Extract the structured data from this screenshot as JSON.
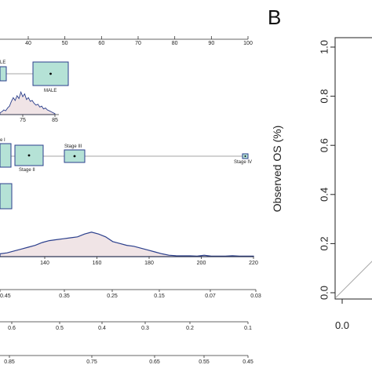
{
  "chart_data": [
    {
      "type": "nomogram",
      "points_axis": {
        "ticks": [
          40,
          50,
          60,
          70,
          80,
          90,
          100
        ]
      },
      "sex": {
        "categories": [
          "LE",
          "MALE"
        ]
      },
      "age_axis": {
        "ticks": [
          75,
          85
        ],
        "density": [
          2,
          3,
          5,
          4,
          7,
          9,
          14,
          18,
          15,
          20,
          17,
          24,
          19,
          22,
          16,
          18,
          14,
          15,
          12,
          10,
          11,
          8,
          9,
          6,
          7,
          5,
          4,
          3,
          2,
          1
        ]
      },
      "stage": {
        "categories": [
          "e I",
          "Stage II",
          "Stage III",
          "Stage IV"
        ]
      },
      "tumor_size_axis": {
        "ticks": [
          140,
          160,
          180,
          200,
          220
        ],
        "density": [
          3,
          4,
          6,
          8,
          10,
          12,
          15,
          17,
          18,
          19,
          20,
          21,
          24,
          26,
          24,
          21,
          16,
          14,
          12,
          11,
          9,
          7,
          5,
          3,
          1.5,
          1,
          0.8,
          0.8,
          0.5,
          1.5,
          0.5,
          0.5,
          0.5,
          1,
          0.5,
          0.5,
          0.5
        ]
      },
      "survival_axes": [
        {
          "ticks": [
            "0.45",
            "0.35",
            "0.25",
            "0.15",
            "0.07",
            "0.03"
          ]
        },
        {
          "ticks": [
            "0.6",
            "0.5",
            "0.4",
            "0.3",
            "0.2",
            "0.1"
          ]
        },
        {
          "ticks": [
            "0.85",
            "0.75",
            "0.65",
            "0.55",
            "0.45"
          ]
        }
      ],
      "colors": {
        "box_fill": "#b5e2d6",
        "box_stroke": "#2b3f8c",
        "density_fill": "#f0e4e6",
        "density_stroke": "#2b3f8c"
      }
    },
    {
      "type": "line",
      "panel_label": "B",
      "ylabel": "Observed OS (%)",
      "y_ticks": [
        "0.0",
        "0.2",
        "0.4",
        "0.6",
        "0.8",
        "1.0"
      ],
      "x_ticks": [
        "0.0"
      ],
      "ylim": [
        0,
        1
      ],
      "reference_line": {
        "x": [
          0,
          0.3
        ],
        "y": [
          0,
          0.3
        ]
      }
    }
  ]
}
